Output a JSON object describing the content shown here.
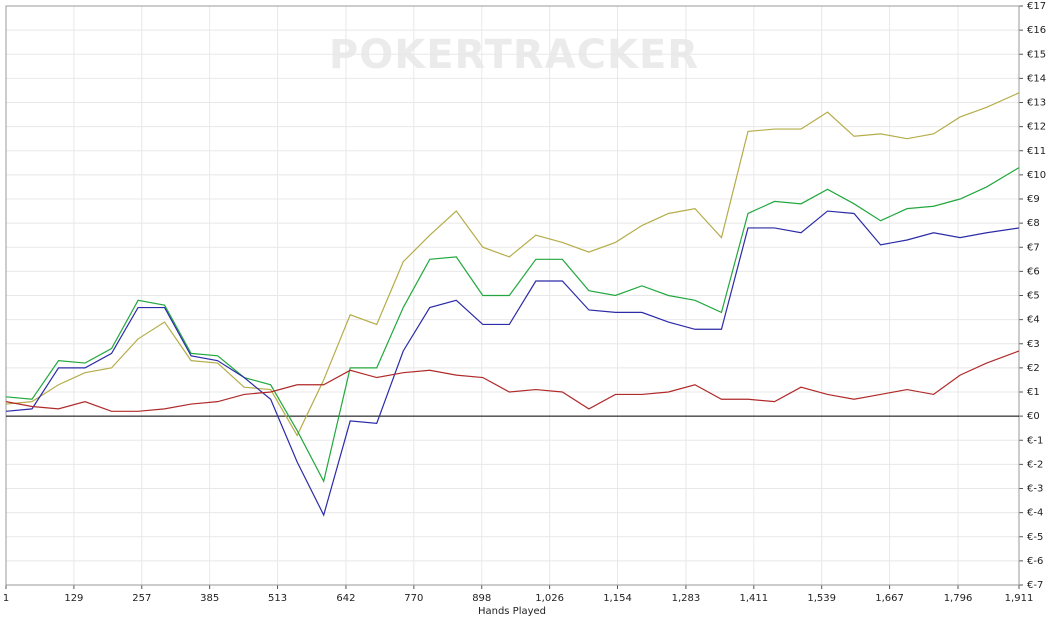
{
  "chart_data": {
    "type": "line",
    "watermark": "POKERTRACKER",
    "x_label": "Hands Played",
    "x": [
      1,
      50,
      100,
      150,
      200,
      250,
      300,
      350,
      400,
      450,
      500,
      550,
      600,
      650,
      700,
      750,
      800,
      850,
      900,
      950,
      1000,
      1050,
      1100,
      1150,
      1200,
      1250,
      1300,
      1350,
      1400,
      1450,
      1500,
      1550,
      1600,
      1650,
      1700,
      1750,
      1800,
      1850,
      1911
    ],
    "series": [
      {
        "color": "#b5ad4a",
        "values": [
          0.5,
          0.6,
          1.3,
          1.8,
          2.0,
          3.2,
          3.9,
          2.3,
          2.2,
          1.2,
          1.1,
          -0.8,
          1.5,
          4.2,
          3.8,
          6.4,
          7.5,
          8.5,
          7.0,
          6.6,
          7.5,
          7.2,
          6.8,
          7.2,
          7.9,
          8.4,
          8.6,
          7.4,
          11.8,
          11.9,
          11.9,
          12.6,
          11.6,
          11.7,
          11.5,
          11.7,
          12.4,
          12.8,
          13.4
        ]
      },
      {
        "color": "#22a83e",
        "values": [
          0.8,
          0.7,
          2.3,
          2.2,
          2.8,
          4.8,
          4.6,
          2.6,
          2.5,
          1.6,
          1.3,
          -0.6,
          -2.7,
          2.0,
          2.0,
          4.5,
          6.5,
          6.6,
          5.0,
          5.0,
          6.5,
          6.5,
          5.2,
          5.0,
          5.4,
          5.0,
          4.8,
          4.3,
          8.4,
          8.9,
          8.8,
          9.4,
          8.8,
          8.1,
          8.6,
          8.7,
          9.0,
          9.5,
          10.3
        ]
      },
      {
        "color": "#2b2ba8",
        "values": [
          0.2,
          0.3,
          2.0,
          2.0,
          2.6,
          4.5,
          4.5,
          2.5,
          2.3,
          1.6,
          0.7,
          -1.9,
          -4.1,
          -0.2,
          -0.3,
          2.7,
          4.5,
          4.8,
          3.8,
          3.8,
          5.6,
          5.6,
          4.4,
          4.3,
          4.3,
          3.9,
          3.6,
          3.6,
          7.8,
          7.8,
          7.6,
          8.5,
          8.4,
          7.1,
          7.3,
          7.6,
          7.4,
          7.6,
          7.8
        ]
      },
      {
        "color": "#b02a2a",
        "values": [
          0.6,
          0.4,
          0.3,
          0.6,
          0.2,
          0.2,
          0.3,
          0.5,
          0.6,
          0.9,
          1.0,
          1.3,
          1.3,
          1.9,
          1.6,
          1.8,
          1.9,
          1.7,
          1.6,
          1.0,
          1.1,
          1.0,
          0.3,
          0.9,
          0.9,
          1.0,
          1.3,
          0.7,
          0.7,
          0.6,
          1.2,
          0.9,
          0.7,
          0.9,
          1.1,
          0.9,
          1.7,
          2.2,
          2.7
        ]
      }
    ],
    "xlim": [
      1,
      1911
    ],
    "xticks": [
      1,
      129,
      257,
      385,
      513,
      642,
      770,
      898,
      {
        "value": 1026,
        "label": "1,026"
      },
      {
        "value": 1154,
        "label": "1,154"
      },
      {
        "value": 1283,
        "label": "1,283"
      },
      {
        "value": 1411,
        "label": "1,411"
      },
      {
        "value": 1539,
        "label": "1,539"
      },
      {
        "value": 1667,
        "label": "1,667"
      },
      {
        "value": 1796,
        "label": "1,796"
      },
      {
        "value": 1911,
        "label": "1,911"
      }
    ],
    "ylim": [
      -7,
      17
    ],
    "yticks": [
      {
        "value": 17,
        "label": "€17"
      },
      {
        "value": 16,
        "label": "€16"
      },
      {
        "value": 15,
        "label": "€15"
      },
      {
        "value": 14,
        "label": "€14"
      },
      {
        "value": 13,
        "label": "€13"
      },
      {
        "value": 12,
        "label": "€12"
      },
      {
        "value": 11,
        "label": "€11"
      },
      {
        "value": 10,
        "label": "€10"
      },
      {
        "value": 9,
        "label": "€9"
      },
      {
        "value": 8,
        "label": "€8"
      },
      {
        "value": 7,
        "label": "€7"
      },
      {
        "value": 6,
        "label": "€6"
      },
      {
        "value": 5,
        "label": "€5"
      },
      {
        "value": 4,
        "label": "€4"
      },
      {
        "value": 3,
        "label": "€3"
      },
      {
        "value": 2,
        "label": "€2"
      },
      {
        "value": 1,
        "label": "€1"
      },
      {
        "value": 0,
        "label": "€0"
      },
      {
        "value": -1,
        "label": "€-1"
      },
      {
        "value": -2,
        "label": "€-2"
      },
      {
        "value": -3,
        "label": "€-3"
      },
      {
        "value": -4,
        "label": "€-4"
      },
      {
        "value": -5,
        "label": "€-5"
      },
      {
        "value": -6,
        "label": "€-6"
      },
      {
        "value": -7,
        "label": "€-7"
      }
    ],
    "grid": true
  }
}
